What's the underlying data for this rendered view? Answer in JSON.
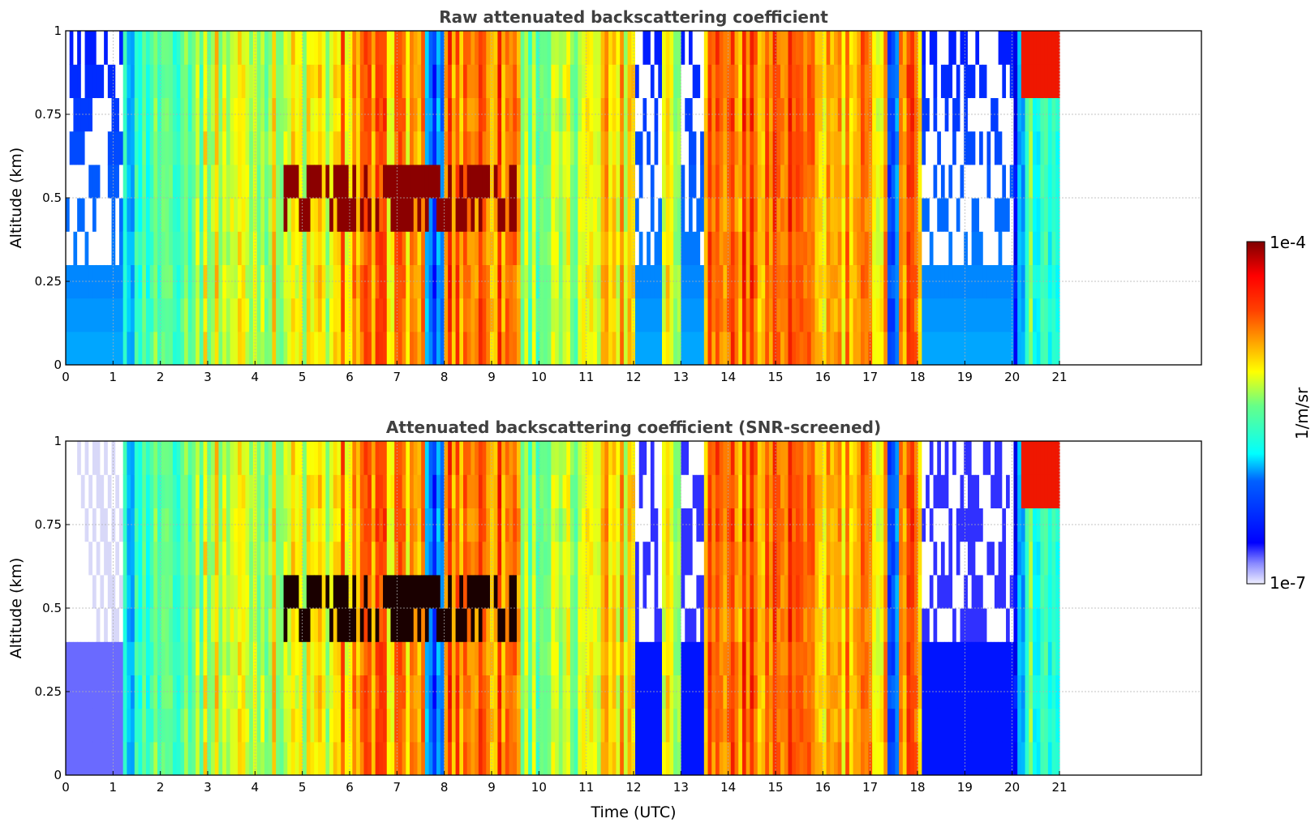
{
  "chart_data": [
    {
      "type": "heatmap",
      "title": "Raw attenuated backscattering coefficient",
      "xlabel": "",
      "ylabel": "Altitude (km)",
      "xlim": [
        0,
        24
      ],
      "ylim": [
        0,
        1
      ],
      "data_extent_x": [
        0,
        21
      ],
      "xticks": [
        0,
        1,
        2,
        3,
        4,
        5,
        6,
        7,
        8,
        9,
        10,
        11,
        12,
        13,
        14,
        15,
        16,
        17,
        18,
        19,
        20,
        21
      ],
      "yticks": [
        0,
        0.25,
        0.5,
        0.75,
        1
      ],
      "ytick_labels": [
        "0",
        "0.25",
        "0.5",
        "0.75",
        "1"
      ],
      "grid": true,
      "colormap": "jet",
      "snr_screened": false
    },
    {
      "type": "heatmap",
      "title": "Attenuated backscattering coefficient (SNR-screened)",
      "xlabel": "Time (UTC)",
      "ylabel": "Altitude (km)",
      "xlim": [
        0,
        24
      ],
      "ylim": [
        0,
        1
      ],
      "data_extent_x": [
        0,
        21
      ],
      "xticks": [
        0,
        1,
        2,
        3,
        4,
        5,
        6,
        7,
        8,
        9,
        10,
        11,
        12,
        13,
        14,
        15,
        16,
        17,
        18,
        19,
        20,
        21
      ],
      "yticks": [
        0,
        0.25,
        0.5,
        0.75,
        1
      ],
      "ytick_labels": [
        "0",
        "0.25",
        "0.5",
        "0.75",
        "1"
      ],
      "grid": true,
      "colormap": "jet",
      "snr_screened": true
    }
  ],
  "colorbar": {
    "label": "1/m/sr",
    "max_label": "1e-4",
    "min_label": "1e-7",
    "scale": "log"
  },
  "colors": {
    "title": "#404040",
    "grid": "#b0b0b0",
    "colormap_stops": [
      "#f0f0ff",
      "#0000ff",
      "#00ffff",
      "#ffff00",
      "#ff0000",
      "#7f0000"
    ]
  }
}
